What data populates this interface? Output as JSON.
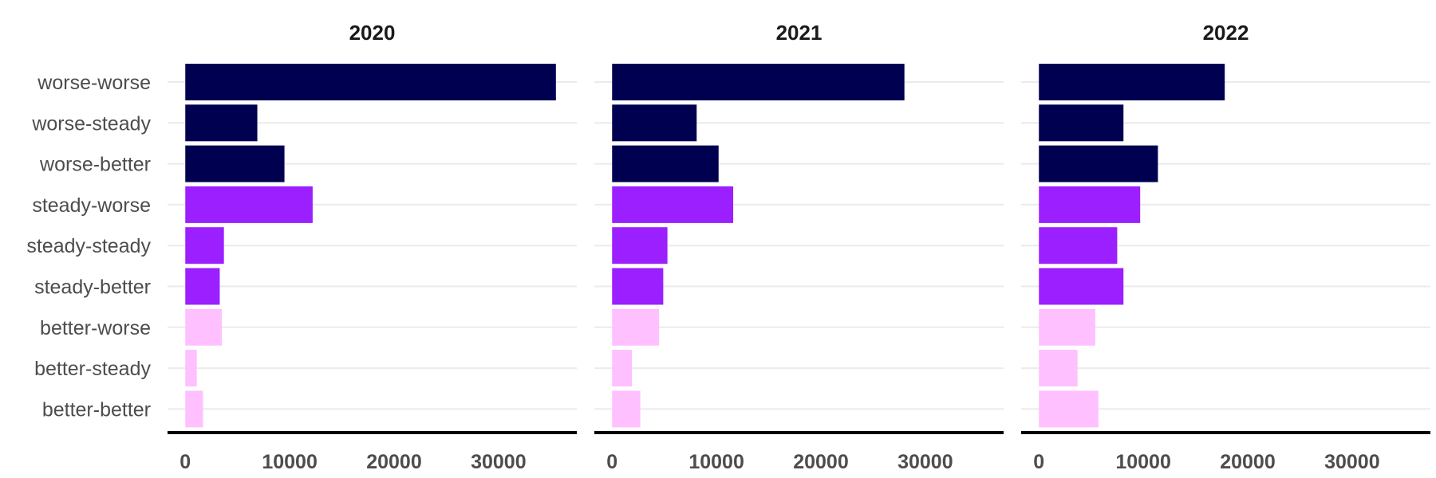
{
  "chart_data": {
    "type": "bar",
    "orientation": "horizontal",
    "facets": [
      "2020",
      "2021",
      "2022"
    ],
    "categories": [
      "worse-worse",
      "worse-steady",
      "worse-better",
      "steady-worse",
      "steady-steady",
      "steady-better",
      "better-worse",
      "better-steady",
      "better-better"
    ],
    "category_colors": [
      "#000050",
      "#000050",
      "#000050",
      "#9b1fff",
      "#9b1fff",
      "#9b1fff",
      "#ffc0ff",
      "#ffc0ff",
      "#ffc0ff"
    ],
    "panels": [
      {
        "title": "2020",
        "values": [
          35500,
          6900,
          9500,
          12200,
          3700,
          3300,
          3500,
          1100,
          1700
        ]
      },
      {
        "title": "2021",
        "values": [
          28000,
          8100,
          10200,
          11600,
          5300,
          4900,
          4500,
          1900,
          2700
        ]
      },
      {
        "title": "2022",
        "values": [
          17800,
          8100,
          11400,
          9700,
          7500,
          8100,
          5400,
          3700,
          5700
        ]
      }
    ],
    "xticks": [
      0,
      10000,
      20000,
      30000
    ],
    "xlim": [
      -1700,
      37500
    ],
    "title": "",
    "xlabel": "",
    "ylabel": "",
    "grid": "horizontal",
    "legend": "none"
  }
}
